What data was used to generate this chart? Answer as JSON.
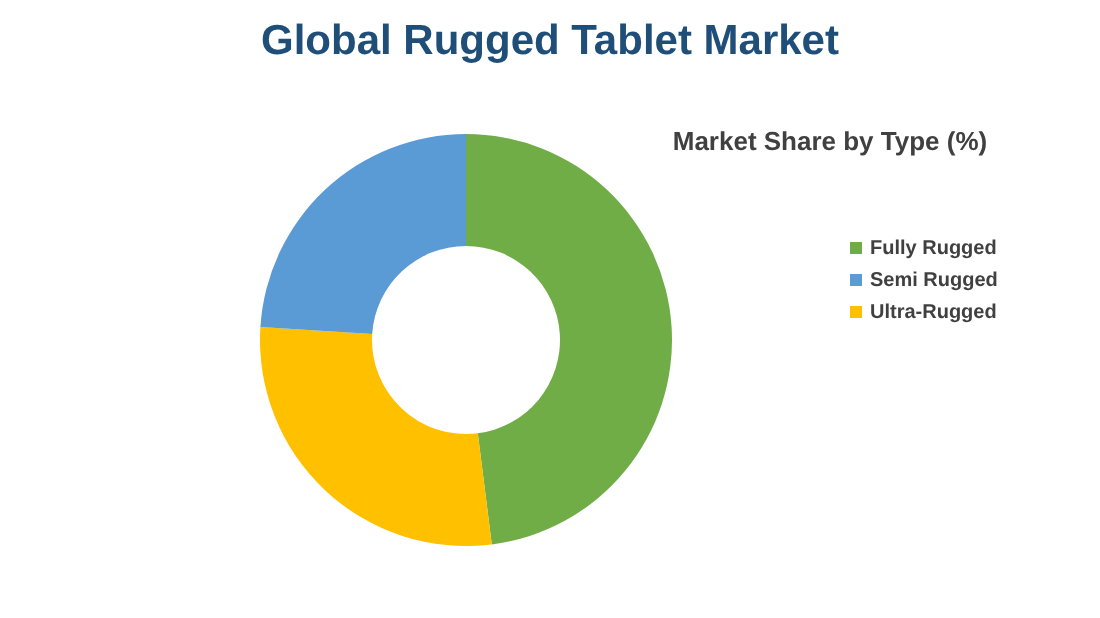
{
  "chart_data": {
    "type": "donut",
    "title": "Global Rugged Tablet Market",
    "legend_title": "Market Share by Type (%)",
    "categories": [
      "Fully Rugged",
      "Semi Rugged",
      "Ultra-Rugged"
    ],
    "values": [
      48,
      24,
      28
    ],
    "colors": [
      "#70ad47",
      "#5b9bd5",
      "#ffc000"
    ],
    "legend": "right"
  }
}
